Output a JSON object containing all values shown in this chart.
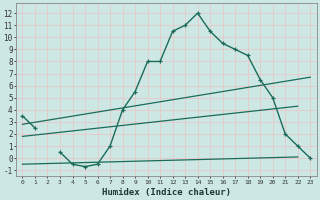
{
  "xlabel": "Humidex (Indice chaleur)",
  "bg_color": "#cde8e4",
  "grid_color": "#e8c8c8",
  "line_color": "#1a6b5a",
  "xlim": [
    -0.5,
    23.5
  ],
  "ylim": [
    -1.5,
    12.8
  ],
  "xticks": [
    0,
    1,
    2,
    3,
    4,
    5,
    6,
    7,
    8,
    9,
    10,
    11,
    12,
    13,
    14,
    15,
    16,
    17,
    18,
    19,
    20,
    21,
    22,
    23
  ],
  "yticks": [
    -1,
    0,
    1,
    2,
    3,
    4,
    5,
    6,
    7,
    8,
    9,
    10,
    11,
    12
  ],
  "main_x": [
    0,
    1,
    2,
    3,
    4,
    5,
    6,
    7,
    8,
    9,
    10,
    11,
    12,
    13,
    14,
    15,
    16,
    17,
    18,
    19,
    20,
    21,
    22,
    23
  ],
  "main_y": [
    3.5,
    2.5,
    null,
    0.5,
    -0.5,
    -0.7,
    -0.5,
    1.0,
    4.0,
    5.5,
    8.0,
    8.0,
    10.5,
    11.0,
    12.0,
    10.5,
    9.5,
    9.0,
    8.5,
    6.5,
    5.0,
    2.0,
    1.0,
    0.0
  ],
  "line1_x": [
    0,
    23
  ],
  "line1_y": [
    2.8,
    6.7
  ],
  "line2_x": [
    0,
    22
  ],
  "line2_y": [
    1.8,
    4.3
  ],
  "line3_x": [
    0,
    22
  ],
  "line3_y": [
    -0.5,
    0.1
  ]
}
